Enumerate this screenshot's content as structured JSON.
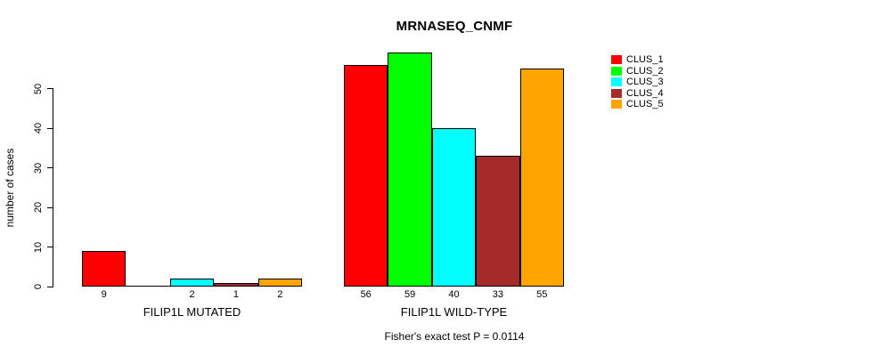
{
  "title": "MRNASEQ_CNMF",
  "y_axis": {
    "label": "number of cases",
    "ticks": [
      0,
      10,
      20,
      30,
      40,
      50
    ]
  },
  "footer": "Fisher's exact test P = 0.0114",
  "legend": {
    "items": [
      {
        "label": "CLUS_1",
        "color": "#FF0000"
      },
      {
        "label": "CLUS_2",
        "color": "#00FF00"
      },
      {
        "label": "CLUS_3",
        "color": "#00FFFF"
      },
      {
        "label": "CLUS_4",
        "color": "#A52A2A"
      },
      {
        "label": "CLUS_5",
        "color": "#FFA500"
      }
    ]
  },
  "chart_data": {
    "type": "bar",
    "title": "MRNASEQ_CNMF",
    "xlabel": "",
    "ylabel": "number of cases",
    "ylim": [
      0,
      50
    ],
    "grid": false,
    "legend_position": "right",
    "series_names": [
      "CLUS_1",
      "CLUS_2",
      "CLUS_3",
      "CLUS_4",
      "CLUS_5"
    ],
    "series_colors": [
      "#FF0000",
      "#00FF00",
      "#00FFFF",
      "#A52A2A",
      "#FFA500"
    ],
    "groups": [
      {
        "label": "FILIP1L MUTATED",
        "values": [
          9,
          0,
          2,
          1,
          2
        ],
        "bar_labels": [
          "9",
          "",
          "2",
          "1",
          "2"
        ]
      },
      {
        "label": "FILIP1L WILD-TYPE",
        "values": [
          56,
          59,
          40,
          33,
          55
        ],
        "bar_labels": [
          "56",
          "59",
          "40",
          "33",
          "55"
        ]
      }
    ],
    "annotation": "Fisher's exact test P = 0.0114"
  }
}
